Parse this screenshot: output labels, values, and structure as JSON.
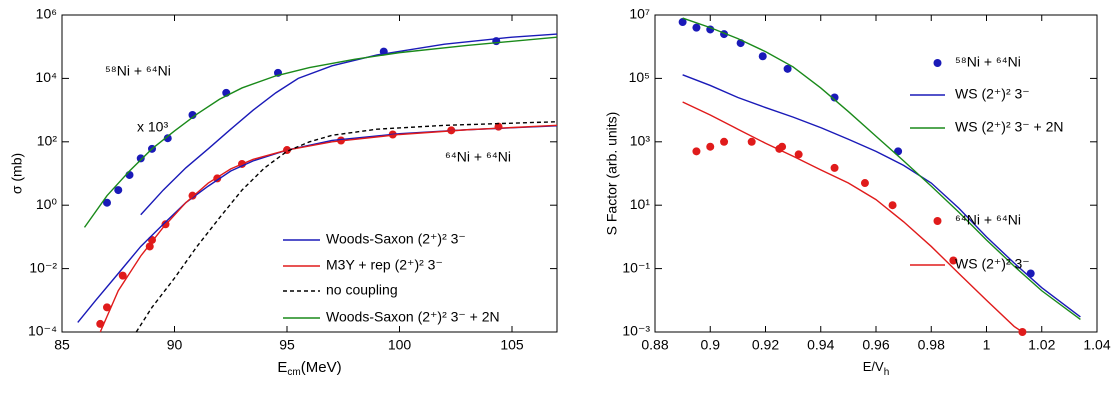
{
  "chart_data": [
    {
      "type": "line",
      "y_scale": "log",
      "x_label": [
        "E",
        "cm",
        "(MeV)"
      ],
      "y_label": "σ (mb)",
      "xlim": [
        85,
        107
      ],
      "xticks": [
        85,
        90,
        95,
        100,
        105
      ],
      "ylim": [
        0.0001,
        1000000
      ],
      "yticks": [
        {
          "value": 0.0001,
          "label": "10⁻⁴"
        },
        {
          "value": 0.01,
          "label": "10⁻²"
        },
        {
          "value": 1,
          "label": "10⁰"
        },
        {
          "value": 100,
          "label": "10²"
        },
        {
          "value": 10000,
          "label": "10⁴"
        },
        {
          "value": 1000000,
          "label": "10⁶"
        }
      ],
      "annotations": [
        {
          "text": "⁵⁸Ni + ⁶⁴Ni",
          "color": "#1a1ab8"
        },
        {
          "text": "x 10³",
          "color": "#1a1ab8"
        },
        {
          "text": "⁶⁴Ni + ⁶⁴Ni",
          "color": "#e01b1b"
        }
      ],
      "series": [
        {
          "style": "markers",
          "color": "#1a1ab8",
          "x": [
            87,
            87.5,
            88,
            88.5,
            89,
            89.7,
            90.8,
            92.3,
            94.6,
            99.3,
            104.3
          ],
          "values": [
            1.2,
            3,
            9,
            30,
            60,
            130,
            700,
            3500,
            15000,
            70000,
            150000
          ]
        },
        {
          "style": "markers",
          "color": "#e01b1b",
          "x": [
            86.7,
            87,
            87.7,
            88.9,
            89,
            89.6,
            90.8,
            91.9,
            93,
            95,
            97.4,
            99.7,
            102.3,
            104.4
          ],
          "values": [
            0.00018,
            0.0006,
            0.006,
            0.05,
            0.08,
            0.25,
            2,
            7,
            20,
            55,
            110,
            170,
            230,
            300
          ]
        },
        {
          "style": "solid",
          "name": "Woods-Saxon (2⁺)² 3⁻",
          "color": "#1a1ab8",
          "x": [
            85.7,
            86.5,
            87.5,
            88.5,
            89.5,
            90.5,
            91.5,
            92.5,
            93.5,
            95,
            97,
            100,
            103,
            107,
            107,
            88.5,
            89.5,
            90.5,
            91.5,
            92.5,
            93.5,
            94.5,
            95.5,
            97,
            99,
            102,
            105,
            107
          ],
          "values": [
            0.0002,
            0.001,
            0.007,
            0.05,
            0.25,
            1.2,
            4,
            12,
            25,
            55,
            110,
            180,
            240,
            320,
            null,
            0.5,
            3,
            15,
            60,
            250,
            1000,
            3500,
            10000,
            25000,
            55000,
            120000,
            200000,
            250000
          ]
        },
        {
          "style": "solid",
          "name": "M3Y + rep (2⁺)² 3⁻",
          "color": "#e01b1b",
          "x": [
            86.7,
            87.5,
            88.5,
            89.5,
            90.5,
            91.5,
            92.5,
            93.5,
            95,
            97,
            100,
            103,
            107
          ],
          "values": [
            0.0001,
            0.002,
            0.025,
            0.2,
            1.2,
            5,
            14,
            28,
            55,
            100,
            170,
            240,
            330
          ]
        },
        {
          "style": "dashed",
          "name": "no coupling",
          "color": "#000000",
          "x": [
            88.3,
            89,
            90,
            91,
            92,
            93,
            94,
            95,
            96,
            97,
            99,
            102,
            107
          ],
          "values": [
            0.0001,
            0.0006,
            0.005,
            0.05,
            0.4,
            3,
            15,
            50,
            100,
            160,
            250,
            330,
            430
          ]
        },
        {
          "style": "solid",
          "name": "Woods-Saxon (2⁺)² 3⁻ + 2N",
          "color": "#1a8a1a",
          "x": [
            86,
            87,
            88,
            89,
            90,
            91,
            92,
            93,
            94.5,
            96,
            98,
            100,
            103,
            107
          ],
          "values": [
            0.2,
            2,
            12,
            60,
            220,
            750,
            2200,
            5000,
            12000,
            22000,
            40000,
            65000,
            110000,
            200000
          ]
        }
      ]
    },
    {
      "type": "line",
      "y_scale": "log",
      "x_label": [
        "E/V",
        "h"
      ],
      "y_label": "S Factor (arb. units)",
      "xlim": [
        0.88,
        1.04
      ],
      "xticks": [
        0.88,
        0.9,
        0.92,
        0.94,
        0.96,
        0.98,
        1,
        1.02,
        1.04
      ],
      "ylim": [
        0.001,
        10000000
      ],
      "yticks": [
        {
          "value": 0.001,
          "label": "10⁻³"
        },
        {
          "value": 0.1,
          "label": "10⁻¹"
        },
        {
          "value": 10,
          "label": "10¹"
        },
        {
          "value": 1000,
          "label": "10³"
        },
        {
          "value": 100000,
          "label": "10⁵"
        },
        {
          "value": 10000000,
          "label": "10⁷"
        }
      ],
      "series": [
        {
          "style": "markers",
          "name": "⁵⁸Ni + ⁶⁴Ni",
          "color": "#1a1ab8",
          "x": [
            0.89,
            0.895,
            0.9,
            0.905,
            0.911,
            0.919,
            0.928,
            0.945,
            0.968,
            1.016
          ],
          "values": [
            6000000,
            4000000,
            3500000,
            2500000,
            1300000,
            500000,
            200000,
            25000,
            500,
            0.07
          ]
        },
        {
          "style": "solid",
          "name": "WS (2⁺)² 3⁻",
          "color": "#1a1ab8",
          "x": [
            0.89,
            0.9,
            0.91,
            0.92,
            0.93,
            0.94,
            0.95,
            0.96,
            0.97,
            0.98,
            0.99,
            1,
            1.01,
            1.02,
            1.034
          ],
          "values": [
            130000,
            60000,
            25000,
            12000,
            6000,
            2800,
            1200,
            500,
            180,
            50,
            8,
            1,
            0.15,
            0.025,
            0.003
          ]
        },
        {
          "style": "solid",
          "name": "WS (2⁺)² 3⁻ + 2N",
          "color": "#1a8a1a",
          "x": [
            0.89,
            0.9,
            0.91,
            0.92,
            0.93,
            0.94,
            0.95,
            0.96,
            0.97,
            0.98,
            0.99,
            1,
            1.01,
            1.02,
            1.034
          ],
          "values": [
            8000000,
            4000000,
            1800000,
            700000,
            230000,
            50000,
            9000,
            1500,
            250,
            40,
            6,
            0.8,
            0.12,
            0.02,
            0.0025
          ]
        },
        {
          "style": "markers",
          "name": "⁶⁴Ni + ⁶⁴Ni",
          "color": "#e01b1b",
          "x": [
            0.895,
            0.9,
            0.905,
            0.915,
            0.925,
            0.926,
            0.932,
            0.945,
            0.956,
            0.966,
            0.988,
            1.013
          ],
          "values": [
            500,
            700,
            1000,
            1000,
            600,
            700,
            400,
            150,
            50,
            10,
            0.18,
            0.001
          ]
        },
        {
          "style": "solid",
          "name": "WS (2⁺)² 3⁻",
          "color": "#e01b1b",
          "x": [
            0.89,
            0.9,
            0.91,
            0.92,
            0.93,
            0.94,
            0.95,
            0.96,
            0.97,
            0.98,
            0.99,
            1,
            1.01,
            1.013
          ],
          "values": [
            18000,
            7000,
            2500,
            900,
            350,
            130,
            50,
            15,
            3,
            0.5,
            0.07,
            0.01,
            0.0015,
            0.001
          ]
        }
      ]
    }
  ]
}
